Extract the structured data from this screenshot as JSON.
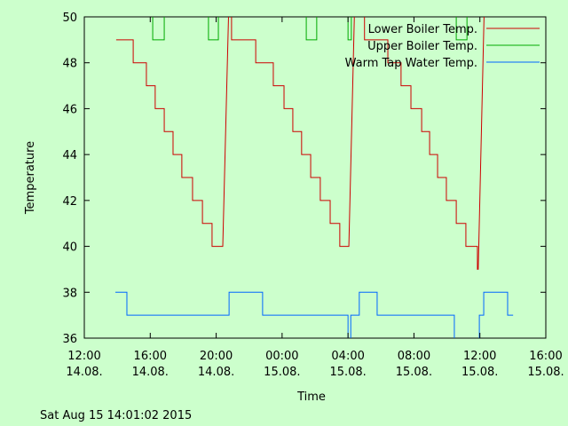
{
  "chart_data": {
    "type": "line",
    "xlabel": "Time",
    "ylabel": "Temperature",
    "footer": "Sat Aug 15 14:01:02 2015",
    "legend": "top-right",
    "xlim": [
      "14.08. 12:00",
      "15.08. 16:00"
    ],
    "xticks": [
      {
        "value": "14.08. 12:00",
        "label": [
          "12:00",
          "14.08."
        ]
      },
      {
        "value": "14.08. 16:00",
        "label": [
          "16:00",
          "14.08."
        ]
      },
      {
        "value": "14.08. 20:00",
        "label": [
          "20:00",
          "14.08."
        ]
      },
      {
        "value": "15.08. 00:00",
        "label": [
          "00:00",
          "15.08."
        ]
      },
      {
        "value": "15.08. 04:00",
        "label": [
          "04:00",
          "15.08."
        ]
      },
      {
        "value": "15.08. 08:00",
        "label": [
          "08:00",
          "15.08."
        ]
      },
      {
        "value": "15.08. 12:00",
        "label": [
          "12:00",
          "15.08."
        ]
      },
      {
        "value": "15.08. 16:00",
        "label": [
          "16:00",
          "15.08."
        ]
      }
    ],
    "ylim": [
      36,
      50
    ],
    "yticks": [
      36,
      38,
      40,
      42,
      44,
      46,
      48,
      50
    ],
    "series": [
      {
        "name": "Lower Boiler Temp.",
        "color": "#cc0000",
        "x": [
          "14.08. 13:56",
          "14.08. 14:58",
          "14.08. 14:58",
          "14.08. 15:46",
          "14.08. 15:46",
          "14.08. 16:18",
          "14.08. 16:18",
          "14.08. 16:51",
          "14.08. 16:51",
          "14.08. 17:23",
          "14.08. 17:23",
          "14.08. 17:55",
          "14.08. 17:55",
          "14.08. 18:34",
          "14.08. 18:34",
          "14.08. 19:10",
          "14.08. 19:10",
          "14.08. 19:45",
          "14.08. 19:45",
          "14.08. 20:24",
          "14.08. 20:47",
          "14.08. 20:56",
          "14.08. 20:56",
          "14.08. 22:24",
          "14.08. 22:24",
          "14.08. 23:28",
          "14.08. 23:28",
          "15.08. 00:07",
          "15.08. 00:07",
          "15.08. 00:39",
          "15.08. 00:39",
          "15.08. 01:11",
          "15.08. 01:11",
          "15.08. 01:44",
          "15.08. 01:44",
          "15.08. 02:19",
          "15.08. 02:19",
          "15.08. 02:55",
          "15.08. 02:55",
          "15.08. 03:30",
          "15.08. 03:30",
          "15.08. 04:03",
          "15.08. 04:25",
          "15.08. 05:00",
          "15.08. 05:00",
          "15.08. 06:25",
          "15.08. 06:25",
          "15.08. 07:13",
          "15.08. 07:13",
          "15.08. 07:49",
          "15.08. 07:49",
          "15.08. 08:28",
          "15.08. 08:28",
          "15.08. 08:57",
          "15.08. 08:57",
          "15.08. 09:26",
          "15.08. 09:26",
          "15.08. 09:58",
          "15.08. 09:58",
          "15.08. 10:34",
          "15.08. 10:34",
          "15.08. 11:09",
          "15.08. 11:09",
          "15.08. 11:51",
          "15.08. 11:51",
          "15.08. 11:54",
          "15.08. 12:17",
          "15.08. 14:01"
        ],
        "values": [
          49,
          49,
          48,
          48,
          47,
          47,
          46,
          46,
          45,
          45,
          44,
          44,
          43,
          43,
          42,
          42,
          41,
          41,
          40,
          40,
          51,
          51,
          49,
          49,
          48,
          48,
          47,
          47,
          46,
          46,
          45,
          45,
          44,
          44,
          43,
          43,
          42,
          42,
          41,
          41,
          40,
          40,
          51,
          51,
          49,
          49,
          48,
          48,
          47,
          47,
          46,
          46,
          45,
          45,
          44,
          44,
          43,
          43,
          42,
          42,
          41,
          41,
          40,
          40,
          39,
          39,
          51,
          51
        ]
      },
      {
        "name": "Upper Boiler Temp.",
        "color": "#00aa00",
        "x": [
          "14.08. 13:56",
          "14.08. 16:09",
          "14.08. 16:09",
          "14.08. 16:51",
          "14.08. 16:51",
          "14.08. 19:32",
          "14.08. 19:32",
          "14.08. 20:08",
          "14.08. 20:08",
          "15.08. 01:28",
          "15.08. 01:28",
          "15.08. 02:06",
          "15.08. 02:06",
          "15.08. 04:00",
          "15.08. 04:00",
          "15.08. 04:12",
          "15.08. 04:12",
          "15.08. 10:34",
          "15.08. 10:34",
          "15.08. 11:13",
          "15.08. 11:13",
          "15.08. 14:01"
        ],
        "values": [
          51,
          51,
          49,
          49,
          51,
          51,
          49,
          49,
          51,
          51,
          49,
          49,
          51,
          51,
          49,
          49,
          51,
          51,
          49,
          49,
          51,
          51
        ]
      },
      {
        "name": "Warm Tap Water Temp.",
        "color": "#0066ff",
        "x": [
          "14.08. 13:53",
          "14.08. 14:35",
          "14.08. 14:35",
          "14.08. 20:47",
          "14.08. 20:47",
          "14.08. 22:49",
          "14.08. 22:49",
          "15.08. 04:00",
          "15.08. 04:00",
          "15.08. 04:10",
          "15.08. 04:10",
          "15.08. 04:41",
          "15.08. 04:41",
          "15.08. 05:46",
          "15.08. 05:46",
          "15.08. 10:27",
          "15.08. 10:27",
          "15.08. 11:58",
          "15.08. 11:58",
          "15.08. 12:14",
          "15.08. 12:14",
          "15.08. 13:41",
          "15.08. 13:41",
          "15.08. 14:01"
        ],
        "values": [
          38,
          38,
          37,
          37,
          38,
          38,
          37,
          37,
          35,
          35,
          37,
          37,
          38,
          38,
          37,
          37,
          35,
          35,
          37,
          37,
          38,
          38,
          37,
          37
        ]
      }
    ]
  }
}
